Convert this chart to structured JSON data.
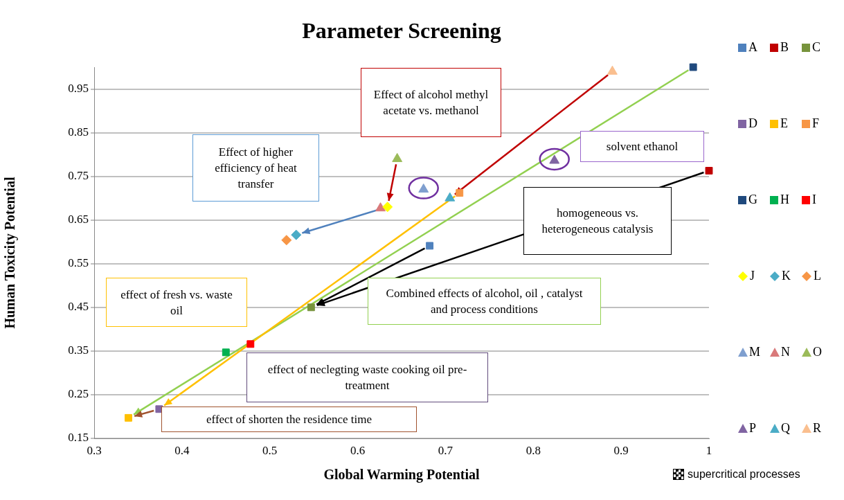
{
  "chart_data": {
    "type": "scatter",
    "title": "Parameter Screening",
    "xlabel": "Global Warming Potential",
    "ylabel": "Human Toxicity Potential",
    "xlim": [
      0.3,
      1
    ],
    "xticks": [
      0.3,
      0.4,
      0.5,
      0.6,
      0.7,
      0.8,
      0.9,
      1
    ],
    "ylim": [
      0.15,
      1.0
    ],
    "yticks": [
      0.15,
      0.25,
      0.35,
      0.45,
      0.55,
      0.65,
      0.75,
      0.85,
      0.95
    ],
    "grid": "y",
    "legend": "right",
    "series": [
      {
        "name": "A",
        "color": "#4f81bd",
        "marker": "square",
        "x": [
          0.682
        ],
        "values": [
          0.591
        ]
      },
      {
        "name": "B",
        "color": "#c00000",
        "marker": "square",
        "x": [
          1.0
        ],
        "values": [
          0.763
        ]
      },
      {
        "name": "C",
        "color": "#77933c",
        "marker": "square",
        "x": [
          0.547
        ],
        "values": [
          0.45
        ]
      },
      {
        "name": "D",
        "color": "#8064a2",
        "marker": "square",
        "x": [
          0.374
        ],
        "values": [
          0.217
        ]
      },
      {
        "name": "E",
        "color": "#ffc000",
        "marker": "square",
        "x": [
          0.339
        ],
        "values": [
          0.197
        ]
      },
      {
        "name": "F",
        "color": "#f79646",
        "marker": "square",
        "x": [
          0.716
        ],
        "values": [
          0.712
        ]
      },
      {
        "name": "G",
        "color": "#1f497d",
        "marker": "square",
        "x": [
          0.982
        ],
        "values": [
          1.0
        ]
      },
      {
        "name": "H",
        "color": "#00b050",
        "marker": "square",
        "x": [
          0.45
        ],
        "values": [
          0.347
        ]
      },
      {
        "name": "I",
        "color": "#ff0000",
        "marker": "square",
        "x": [
          0.478
        ],
        "values": [
          0.366
        ]
      },
      {
        "name": "J",
        "color": "#ffff00",
        "marker": "diamond",
        "x": [
          0.634
        ],
        "values": [
          0.68
        ]
      },
      {
        "name": "K",
        "color": "#4bacc6",
        "marker": "diamond",
        "x": [
          0.53
        ],
        "values": [
          0.616
        ]
      },
      {
        "name": "L",
        "color": "#f79646",
        "marker": "diamond",
        "x": [
          0.519
        ],
        "values": [
          0.604
        ]
      },
      {
        "name": "M",
        "color": "#7f9fcf",
        "marker": "triangle",
        "x": [
          0.675
        ],
        "values": [
          0.72
        ]
      },
      {
        "name": "N",
        "color": "#d9797a",
        "marker": "triangle",
        "x": [
          0.626
        ],
        "values": [
          0.677
        ]
      },
      {
        "name": "O",
        "color": "#9bbb59",
        "marker": "triangle",
        "x": [
          0.645
        ],
        "values": [
          0.79
        ]
      },
      {
        "name": "P",
        "color": "#8064a2",
        "marker": "triangle",
        "x": [
          0.824
        ],
        "values": [
          0.786
        ]
      },
      {
        "name": "Q",
        "color": "#4bacc6",
        "marker": "triangle",
        "x": [
          0.705
        ],
        "values": [
          0.7
        ]
      },
      {
        "name": "R",
        "color": "#fabf8f",
        "marker": "triangle",
        "x": [
          0.89
        ],
        "values": [
          0.99
        ]
      }
    ],
    "annotations": [
      "Effect of alcohol methyl acetate  vs. methanol",
      "Effect of higher efficiency of heat transfer",
      "solvent ethanol",
      "homogeneous vs. heterogeneous catalysis",
      "Combined effects of alcohol, oil , catalyst and process conditions",
      "effect of fresh vs. waste oil",
      "effect of neclegting waste cooking oil pre-treatment",
      "effect of shorten the residence time",
      "supercritical processes"
    ]
  }
}
